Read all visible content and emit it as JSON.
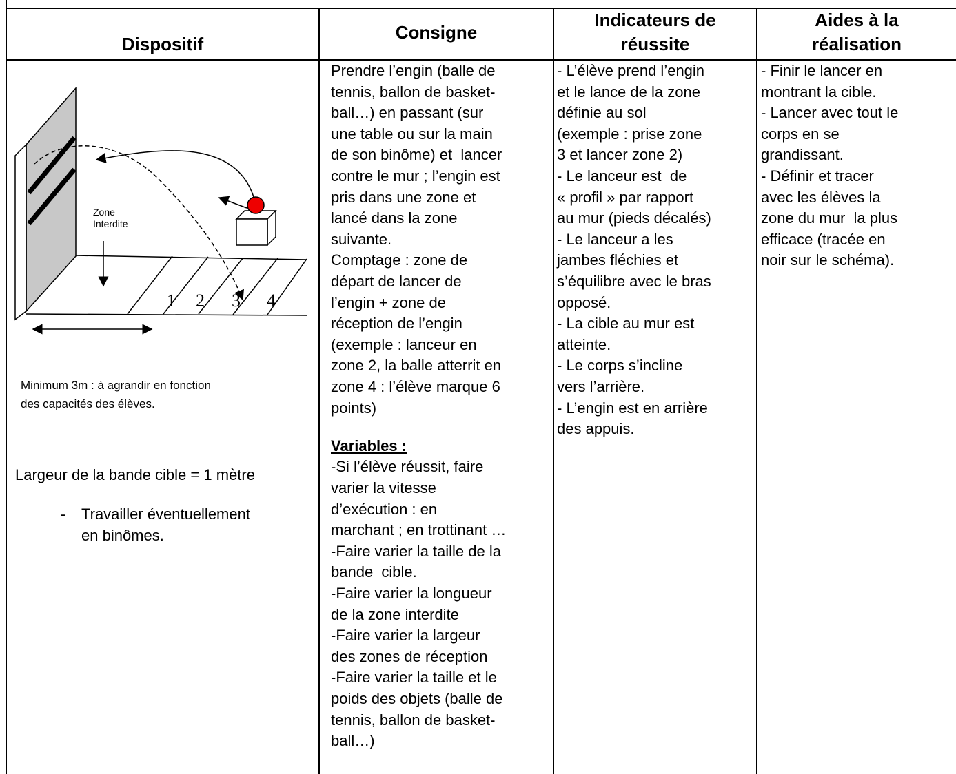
{
  "table": {
    "headers": {
      "dispositif": [
        "Dispositif"
      ],
      "consigne": [
        "Consigne"
      ],
      "indicateurs": [
        "Indicateurs de",
        "réussite"
      ],
      "aides": [
        "Aides à la",
        "réalisation"
      ]
    },
    "dispositif": {
      "diagram": {
        "zone_label": [
          "Zone",
          "Interdite"
        ],
        "numbers": [
          "1",
          "2",
          "3",
          "4"
        ]
      },
      "note": [
        "Minimum 3m : à agrandir en fonction",
        "des capacités des élèves."
      ],
      "largeur": "Largeur de la bande cible = 1 mètre",
      "bullet_marker": "-",
      "bullet_lines": [
        "Travailler éventuellement",
        "en binômes."
      ]
    },
    "consigne": {
      "lines": [
        "Prendre l’engin (balle de",
        "tennis, ballon de basket-",
        "ball…) en passant (sur",
        "une table ou sur la main",
        "de son binôme) et  lancer",
        "contre le mur ; l’engin est",
        "pris dans une zone et",
        "lancé dans la zone",
        "suivante.",
        "Comptage : zone de",
        "départ de lancer de",
        "l’engin + zone de",
        "réception de l’engin",
        "(exemple : lanceur en",
        "zone 2, la balle atterrit en",
        "zone 4 : l’élève marque 6",
        "points)"
      ],
      "variables_title": "Variables :",
      "variables_lines": [
        "-Si l’élève réussit, faire",
        "varier la vitesse",
        "d’exécution : en",
        "marchant ; en trottinant …",
        "-Faire varier la taille de la",
        "bande  cible.",
        "-Faire varier la longueur",
        "de la zone interdite",
        "-Faire varier la largeur",
        "des zones de réception",
        "-Faire varier la taille et le",
        "poids des objets (balle de",
        "tennis, ballon de basket-",
        "ball…)"
      ]
    },
    "indicateurs": [
      "- L’élève prend l’engin",
      "et le lance de la zone",
      "définie au sol",
      "(exemple : prise zone",
      "3 et lancer zone 2)",
      "- Le lanceur est  de",
      "« profil » par rapport",
      "au mur (pieds décalés)",
      "- Le lanceur a les",
      "jambes fléchies et",
      "s’équilibre avec le bras",
      "opposé.",
      "- La cible au mur est",
      "atteinte.",
      "- Le corps s’incline",
      "vers l’arrière.",
      "- L’engin est en arrière",
      "des appuis."
    ],
    "aides": [
      "- Finir le lancer en",
      "montrant la cible.",
      "- Lancer avec tout le",
      "corps en se",
      "grandissant.",
      "- Définir et tracer",
      "avec les élèves la",
      "zone du mur  la plus",
      "efficace (tracée en",
      "noir sur le schéma)."
    ]
  }
}
